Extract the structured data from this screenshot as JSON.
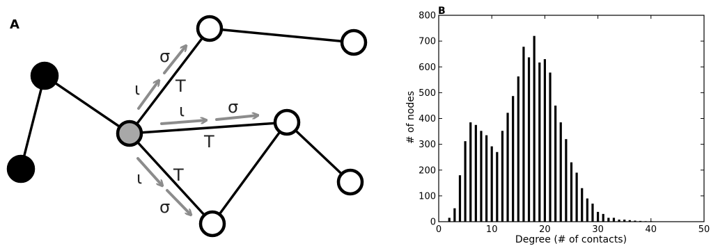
{
  "panel_a": {
    "label": "A",
    "arrow_labels": {
      "upper_iota": "ι",
      "upper_sigma": "σ",
      "upper_T": "T",
      "middle_iota": "ι",
      "middle_sigma": "σ",
      "middle_T": "T",
      "lower_iota": "ι",
      "lower_sigma": "σ",
      "lower_T": "T"
    },
    "colors": {
      "infected_node": "#000000",
      "source_node": "#a8a8a8",
      "susceptible_node": "#ffffff",
      "arrow": "#8c8c8c",
      "edge": "#000000"
    }
  },
  "panel_b": {
    "label": "B",
    "chart_data": {
      "type": "bar",
      "xlabel": "Degree (# of contacts)",
      "ylabel": "# of nodes",
      "xlim": [
        0,
        50
      ],
      "ylim": [
        0,
        800
      ],
      "xticks": [
        "0",
        "10",
        "20",
        "30",
        "40",
        "50"
      ],
      "yticks": [
        "0",
        "100",
        "200",
        "300",
        "400",
        "500",
        "600",
        "700",
        "800"
      ],
      "x": [
        2,
        3,
        4,
        5,
        6,
        7,
        8,
        9,
        10,
        11,
        12,
        13,
        14,
        15,
        16,
        17,
        18,
        19,
        20,
        21,
        22,
        23,
        24,
        25,
        26,
        27,
        28,
        29,
        30,
        31,
        32,
        33,
        34,
        35,
        36,
        37,
        38,
        39,
        40,
        41,
        42,
        43,
        44
      ],
      "values": [
        15,
        52,
        180,
        312,
        385,
        375,
        352,
        335,
        292,
        270,
        352,
        422,
        487,
        563,
        678,
        637,
        720,
        617,
        630,
        578,
        450,
        385,
        320,
        230,
        190,
        130,
        90,
        70,
        38,
        30,
        15,
        15,
        8,
        8,
        6,
        4,
        3,
        2,
        2,
        1,
        1,
        1,
        1
      ]
    }
  }
}
